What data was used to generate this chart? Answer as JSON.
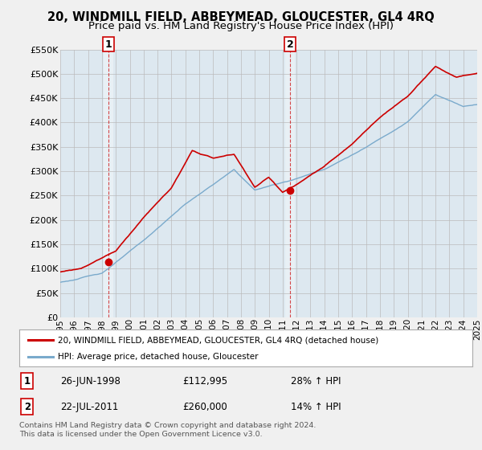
{
  "title": "20, WINDMILL FIELD, ABBEYMEAD, GLOUCESTER, GL4 4RQ",
  "subtitle": "Price paid vs. HM Land Registry's House Price Index (HPI)",
  "ylim": [
    0,
    550000
  ],
  "yticks": [
    0,
    50000,
    100000,
    150000,
    200000,
    250000,
    300000,
    350000,
    400000,
    450000,
    500000,
    550000
  ],
  "ytick_labels": [
    "£0",
    "£50K",
    "£100K",
    "£150K",
    "£200K",
    "£250K",
    "£300K",
    "£350K",
    "£400K",
    "£450K",
    "£500K",
    "£550K"
  ],
  "background_color": "#f0f0f0",
  "plot_bg_color": "#dde8f0",
  "grid_color": "#bbbbbb",
  "red_line_color": "#cc0000",
  "blue_line_color": "#7aaacc",
  "highlight_color": "#c8dce8",
  "legend_label_red": "20, WINDMILL FIELD, ABBEYMEAD, GLOUCESTER, GL4 4RQ (detached house)",
  "legend_label_blue": "HPI: Average price, detached house, Gloucester",
  "annotation1_date": "26-JUN-1998",
  "annotation1_price": "£112,995",
  "annotation1_hpi": "28% ↑ HPI",
  "annotation2_date": "22-JUL-2011",
  "annotation2_price": "£260,000",
  "annotation2_hpi": "14% ↑ HPI",
  "footnote": "Contains HM Land Registry data © Crown copyright and database right 2024.\nThis data is licensed under the Open Government Licence v3.0.",
  "title_fontsize": 10.5,
  "subtitle_fontsize": 9.5,
  "tick_fontsize": 8,
  "xtick_years": [
    1995,
    1996,
    1997,
    1998,
    1999,
    2000,
    2001,
    2002,
    2003,
    2004,
    2005,
    2006,
    2007,
    2008,
    2009,
    2010,
    2011,
    2012,
    2013,
    2014,
    2015,
    2016,
    2017,
    2018,
    2019,
    2020,
    2021,
    2022,
    2023,
    2024,
    2025
  ],
  "pt1_x": 1998.48,
  "pt1_y": 112995,
  "pt2_x": 2011.55,
  "pt2_y": 260000
}
